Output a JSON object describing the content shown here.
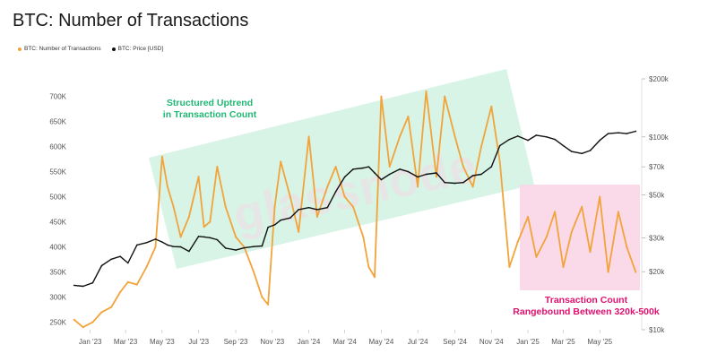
{
  "chart_data": {
    "type": "line",
    "title": "BTC: Number of Transactions",
    "watermark": "glassnode",
    "series": [
      {
        "name": "BTC: Number of Transactions",
        "color": "#f2a33a",
        "axis": "left",
        "x": [
          "2022-12-05",
          "2022-12-20",
          "2023-01-05",
          "2023-01-20",
          "2023-02-05",
          "2023-02-20",
          "2023-03-05",
          "2023-03-20",
          "2023-04-05",
          "2023-04-20",
          "2023-05-01",
          "2023-05-10",
          "2023-05-20",
          "2023-06-01",
          "2023-06-15",
          "2023-07-01",
          "2023-07-10",
          "2023-07-20",
          "2023-08-01",
          "2023-08-15",
          "2023-09-01",
          "2023-09-15",
          "2023-10-01",
          "2023-10-15",
          "2023-10-25",
          "2023-11-05",
          "2023-11-15",
          "2023-12-01",
          "2023-12-15",
          "2024-01-01",
          "2024-01-15",
          "2024-02-01",
          "2024-02-15",
          "2024-03-01",
          "2024-03-15",
          "2024-04-01",
          "2024-04-10",
          "2024-04-20",
          "2024-05-01",
          "2024-05-15",
          "2024-06-01",
          "2024-06-15",
          "2024-07-01",
          "2024-07-15",
          "2024-08-01",
          "2024-08-15",
          "2024-09-01",
          "2024-09-15",
          "2024-10-01",
          "2024-10-15",
          "2024-11-01",
          "2024-11-15",
          "2024-12-01",
          "2024-12-15",
          "2025-01-01",
          "2025-01-15",
          "2025-02-01",
          "2025-02-15",
          "2025-03-01",
          "2025-03-15",
          "2025-04-01",
          "2025-04-15",
          "2025-05-01",
          "2025-05-15",
          "2025-06-01",
          "2025-06-15",
          "2025-06-30"
        ],
        "values": [
          255000,
          240000,
          250000,
          270000,
          280000,
          310000,
          330000,
          325000,
          360000,
          400000,
          580000,
          520000,
          480000,
          420000,
          460000,
          540000,
          440000,
          450000,
          560000,
          480000,
          420000,
          400000,
          350000,
          300000,
          285000,
          480000,
          570000,
          500000,
          430000,
          620000,
          460000,
          520000,
          560000,
          500000,
          480000,
          420000,
          360000,
          340000,
          700000,
          560000,
          620000,
          660000,
          520000,
          710000,
          540000,
          700000,
          620000,
          560000,
          520000,
          600000,
          680000,
          570000,
          360000,
          410000,
          460000,
          380000,
          420000,
          470000,
          360000,
          430000,
          480000,
          390000,
          500000,
          350000,
          470000,
          400000,
          350000
        ]
      },
      {
        "name": "BTC: Price [USD]",
        "color": "#111111",
        "axis": "right",
        "x": [
          "2022-12-05",
          "2022-12-20",
          "2023-01-05",
          "2023-01-20",
          "2023-02-05",
          "2023-02-20",
          "2023-03-05",
          "2023-03-20",
          "2023-04-05",
          "2023-04-20",
          "2023-05-01",
          "2023-05-10",
          "2023-05-20",
          "2023-06-01",
          "2023-06-15",
          "2023-07-01",
          "2023-07-10",
          "2023-07-20",
          "2023-08-01",
          "2023-08-15",
          "2023-09-01",
          "2023-09-15",
          "2023-10-01",
          "2023-10-15",
          "2023-10-25",
          "2023-11-05",
          "2023-11-15",
          "2023-12-01",
          "2023-12-15",
          "2024-01-01",
          "2024-01-15",
          "2024-02-01",
          "2024-02-15",
          "2024-03-01",
          "2024-03-15",
          "2024-04-01",
          "2024-04-10",
          "2024-04-20",
          "2024-05-01",
          "2024-05-15",
          "2024-06-01",
          "2024-06-15",
          "2024-07-01",
          "2024-07-15",
          "2024-08-01",
          "2024-08-15",
          "2024-09-01",
          "2024-09-15",
          "2024-10-01",
          "2024-10-15",
          "2024-11-01",
          "2024-11-15",
          "2024-12-01",
          "2024-12-15",
          "2025-01-01",
          "2025-01-15",
          "2025-02-01",
          "2025-02-15",
          "2025-03-01",
          "2025-03-15",
          "2025-04-01",
          "2025-04-15",
          "2025-05-01",
          "2025-05-15",
          "2025-06-01",
          "2025-06-15",
          "2025-06-30"
        ],
        "values": [
          17000,
          16800,
          17500,
          21500,
          23200,
          24000,
          22200,
          27500,
          28300,
          29500,
          28500,
          27500,
          27000,
          26900,
          25500,
          30500,
          30300,
          30000,
          29300,
          26500,
          25900,
          26600,
          27000,
          27200,
          34000,
          35000,
          37000,
          38000,
          42000,
          43000,
          42000,
          43000,
          52000,
          62000,
          68000,
          69000,
          70000,
          65000,
          60000,
          64000,
          68000,
          66000,
          62000,
          64000,
          65000,
          58000,
          57500,
          58000,
          63000,
          64000,
          70000,
          90000,
          97000,
          101000,
          96000,
          102000,
          100000,
          97000,
          90000,
          84000,
          82000,
          85000,
          96000,
          104000,
          105000,
          104000,
          107000
        ]
      }
    ],
    "x_ticks": [
      "Jan '23",
      "Mar '23",
      "May '23",
      "Jul '23",
      "Sep '23",
      "Nov '23",
      "Jan '24",
      "Mar '24",
      "May '24",
      "Jul '24",
      "Sep '24",
      "Nov '24",
      "Jan '25",
      "Mar '25",
      "May '25"
    ],
    "left_axis": {
      "ticks": [
        "250K",
        "300K",
        "350K",
        "400K",
        "450K",
        "500K",
        "550K",
        "600K",
        "650K",
        "700K"
      ],
      "range": [
        235000,
        735000
      ]
    },
    "right_axis": {
      "scale": "log",
      "ticks": [
        "$10k",
        "$20k",
        "$30k",
        "$50k",
        "$70k",
        "$100k",
        "$200k"
      ],
      "range": [
        10000,
        200000
      ]
    },
    "annotations": [
      {
        "id": "uptrend",
        "lines": [
          "Structured Uptrend",
          "in Transaction Count"
        ],
        "color": "#1fb873"
      },
      {
        "id": "range",
        "lines": [
          "Transaction Count",
          "Rangebound Between 320k-500k"
        ],
        "color": "#e0116f"
      }
    ]
  }
}
